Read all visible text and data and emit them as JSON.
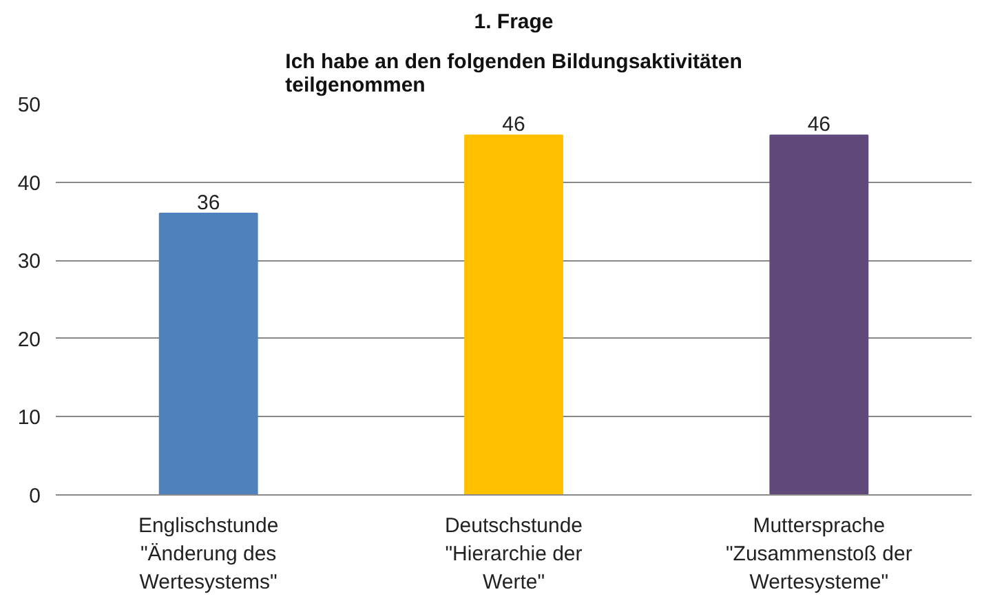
{
  "chart_data": {
    "type": "bar",
    "title": "1. Frage",
    "subtitle": "Ich habe an den folgenden Bildungsaktivitäten teilgenommen",
    "categories": [
      "Englischstunde \"Änderung des Wertesystems\"",
      "Deutschstunde \"Hierarchie der Werte\"",
      "Muttersprache \"Zusammenstoß der Wertesysteme\""
    ],
    "values": [
      36,
      46,
      46
    ],
    "colors": [
      "#4f81bd",
      "#ffc000",
      "#604a7b"
    ],
    "ylim": [
      0,
      50
    ],
    "yticks": [
      0,
      10,
      20,
      30,
      40,
      50
    ],
    "grid": "y",
    "data_labels": true
  }
}
